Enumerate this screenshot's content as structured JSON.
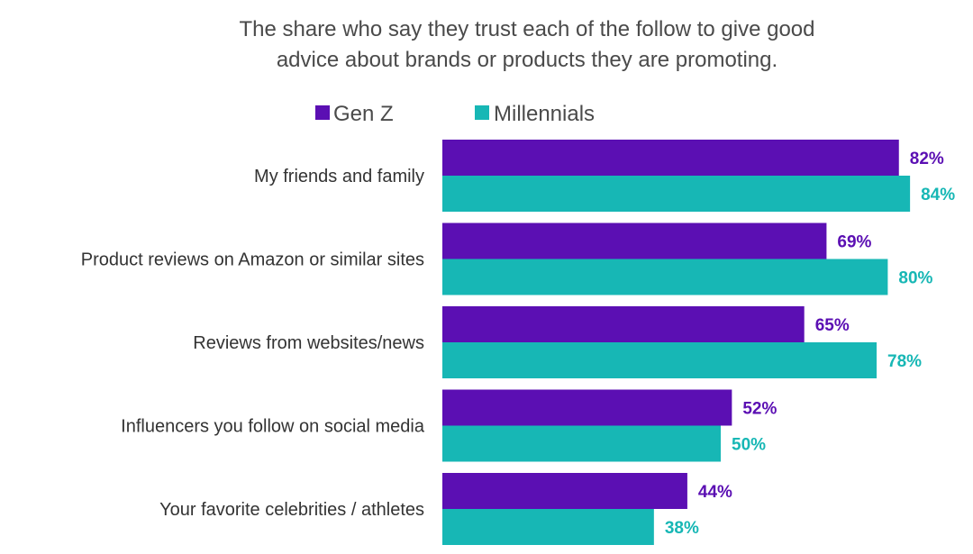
{
  "colors": {
    "gen_z": "#5b0fb3",
    "millennials": "#17b7b5"
  },
  "chart_data": {
    "type": "bar",
    "orientation": "horizontal",
    "title": "The share who say they trust each of the follow to give good advice about brands or products they are promoting.",
    "title_lines": [
      "The share who say they trust each of the follow to give good",
      "advice about brands or products they are promoting."
    ],
    "categories": [
      "My friends and family",
      "Product reviews on Amazon or similar sites",
      "Reviews from websites/news",
      "Influencers you follow on social media",
      "Your favorite celebrities / athletes"
    ],
    "series": [
      {
        "name": "Gen Z",
        "values": [
          82,
          69,
          65,
          52,
          44
        ],
        "labels": [
          "82%",
          "69%",
          "65%",
          "52%",
          "44%"
        ],
        "color": "#5b0fb3"
      },
      {
        "name": "Millennials",
        "values": [
          84,
          80,
          78,
          50,
          38
        ],
        "labels": [
          "84%",
          "80%",
          "78%",
          "50%",
          "38%"
        ],
        "color": "#17b7b5"
      }
    ],
    "xlim": [
      0,
      100
    ],
    "unit": "%",
    "grid": false,
    "legend_position": "top"
  }
}
